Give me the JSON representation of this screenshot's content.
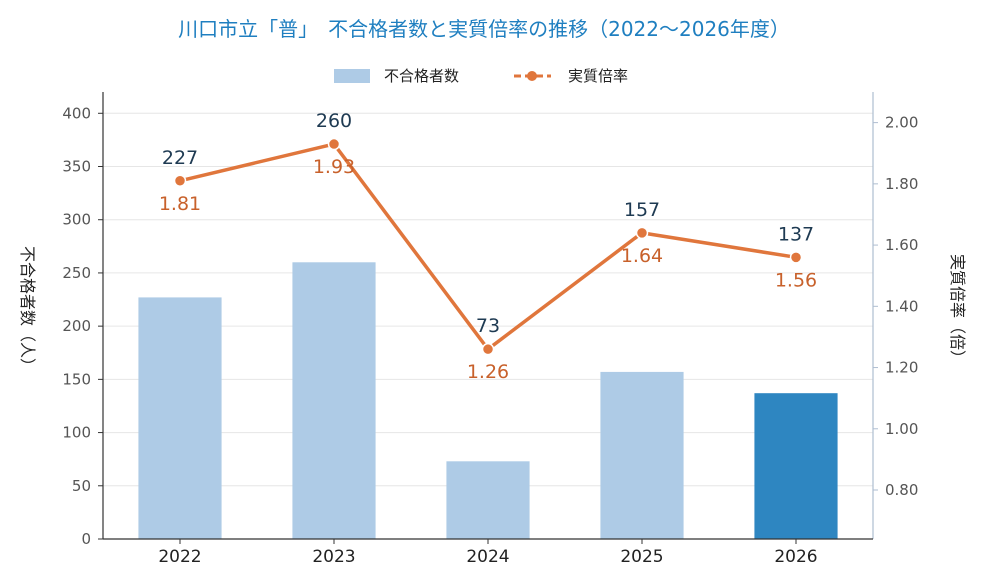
{
  "chart_data": {
    "type": "bar+line",
    "title": "川口市立「普」　不合格者数と実質倍率の推移（2022〜2026年度）",
    "categories": [
      "2022",
      "2023",
      "2024",
      "2025",
      "2026"
    ],
    "series": [
      {
        "name": "不合格者数",
        "type": "bar",
        "axis": "left",
        "values": [
          227,
          260,
          73,
          157,
          137
        ],
        "color": "#aecbe6",
        "highlight_color": "#2e86c1",
        "highlight_index": 4
      },
      {
        "name": "実質倍率",
        "type": "line",
        "axis": "right",
        "values": [
          1.81,
          1.93,
          1.26,
          1.64,
          1.56
        ],
        "labels": [
          "1.81",
          "1.93",
          "1.26",
          "1.64",
          "1.56"
        ],
        "color": "#e0763c"
      }
    ],
    "y_left": {
      "label": "不合格者数（人）",
      "ylim": [
        0,
        420
      ],
      "ticks": [
        0,
        50,
        100,
        150,
        200,
        250,
        300,
        350,
        400
      ]
    },
    "y_right": {
      "label": "実質倍率（倍）",
      "ylim": [
        0.64,
        2.1
      ],
      "ticks": [
        "0.80",
        "1.00",
        "1.20",
        "1.40",
        "1.60",
        "1.80",
        "2.00"
      ]
    },
    "grid": true,
    "legend": "top-center",
    "title_color": "#1f7fc0"
  }
}
